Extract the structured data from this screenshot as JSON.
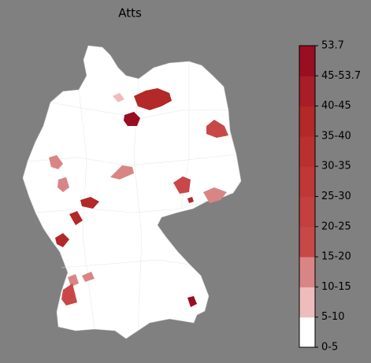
{
  "title": "Atts",
  "legend": {
    "labels": [
      "0-5",
      "5-10",
      "10-15",
      "15-20",
      "20-25",
      "25-30",
      "30-35",
      "35-40",
      "40-45",
      "45-53.7",
      "53.7"
    ],
    "colors": [
      "#ffffff",
      "#eebcbc",
      "#d98585",
      "#c84848",
      "#c43f3f",
      "#bf3737",
      "#ba3030",
      "#b32828",
      "#a81d27",
      "#9a0e22"
    ]
  }
}
